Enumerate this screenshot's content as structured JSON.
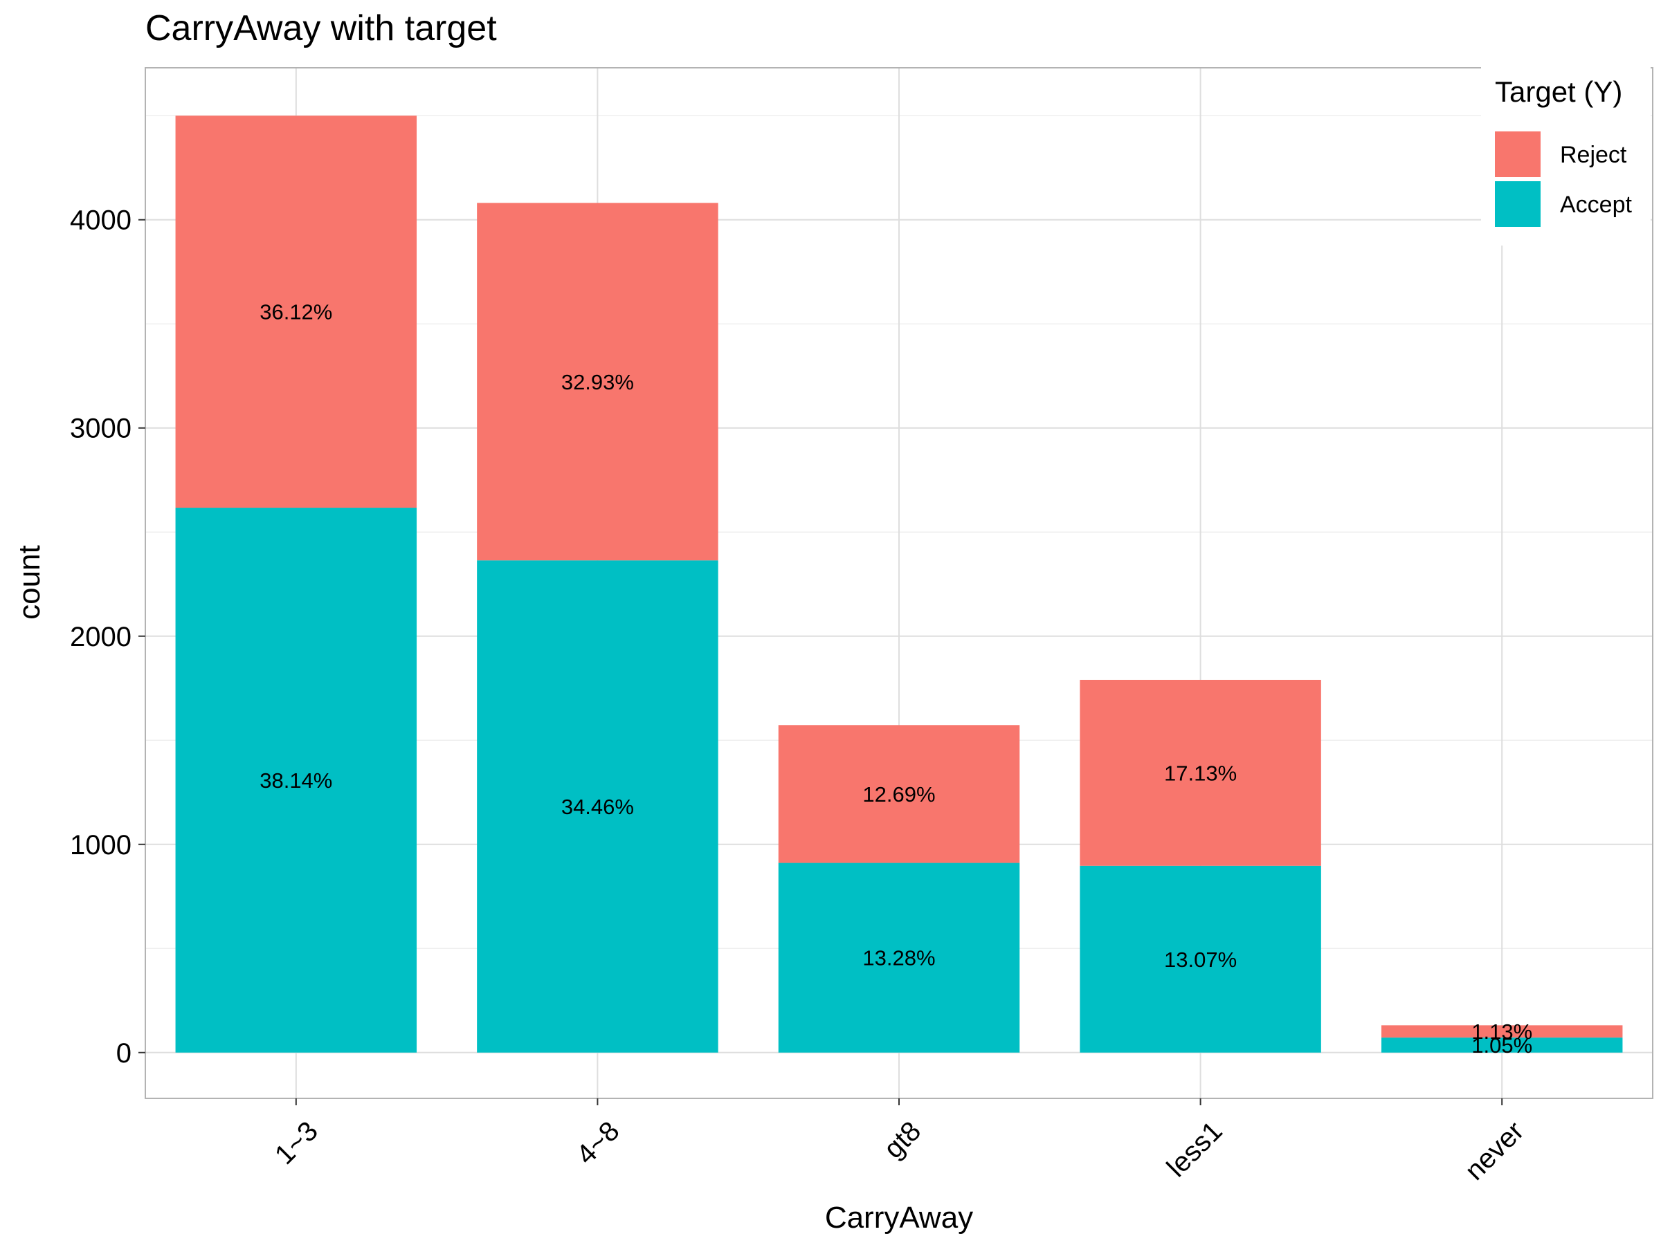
{
  "chart_data": {
    "type": "bar",
    "stacked": true,
    "title": "CarryAway with target",
    "xlabel": "CarryAway",
    "ylabel": "count",
    "categories": [
      "1~3",
      "4~8",
      "gt8",
      "less1",
      "never"
    ],
    "ylim": [
      -220,
      4730
    ],
    "yticks": [
      0,
      1000,
      2000,
      3000,
      4000
    ],
    "grid": true,
    "legend": {
      "title": "Target (Y)",
      "position": "top-right",
      "entries": [
        "Reject",
        "Accept"
      ]
    },
    "series": [
      {
        "name": "Accept",
        "color": "#00BFC4",
        "values": [
          2617,
          2364,
          911,
          897,
          72
        ],
        "labels": [
          "38.14%",
          "34.46%",
          "13.28%",
          "13.07%",
          "1.05%"
        ]
      },
      {
        "name": "Reject",
        "color": "#F8766D",
        "values": [
          1883,
          1717,
          662,
          893,
          59
        ],
        "labels": [
          "36.12%",
          "32.93%",
          "12.69%",
          "17.13%",
          "1.13%"
        ]
      }
    ]
  }
}
